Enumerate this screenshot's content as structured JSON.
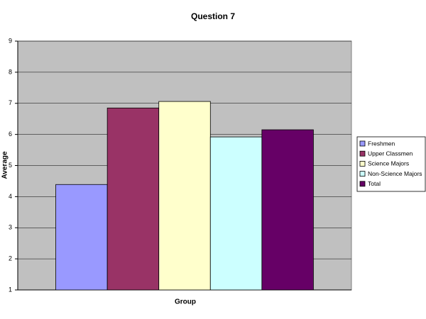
{
  "chart_data": {
    "type": "bar",
    "title": "Question 7",
    "x_label": "Group",
    "y_label": "Average",
    "categories": [
      null
    ],
    "series": [
      {
        "name": "Freshmen",
        "color": "#9999ff",
        "values": [
          4.39
        ]
      },
      {
        "name": "Upper Classmen",
        "color": "#993366",
        "values": [
          6.85
        ]
      },
      {
        "name": "Science Majors",
        "color": "#ffffcc",
        "values": [
          7.06
        ]
      },
      {
        "name": "Non-Science Majors",
        "color": "#ccffff",
        "values": [
          5.92
        ]
      },
      {
        "name": "Total",
        "color": "#660066",
        "values": [
          6.15
        ]
      }
    ],
    "ylim": [
      1,
      9
    ],
    "yticks": [
      1,
      2,
      3,
      4,
      5,
      6,
      7,
      8,
      9
    ],
    "grid": true,
    "legend": "right"
  }
}
